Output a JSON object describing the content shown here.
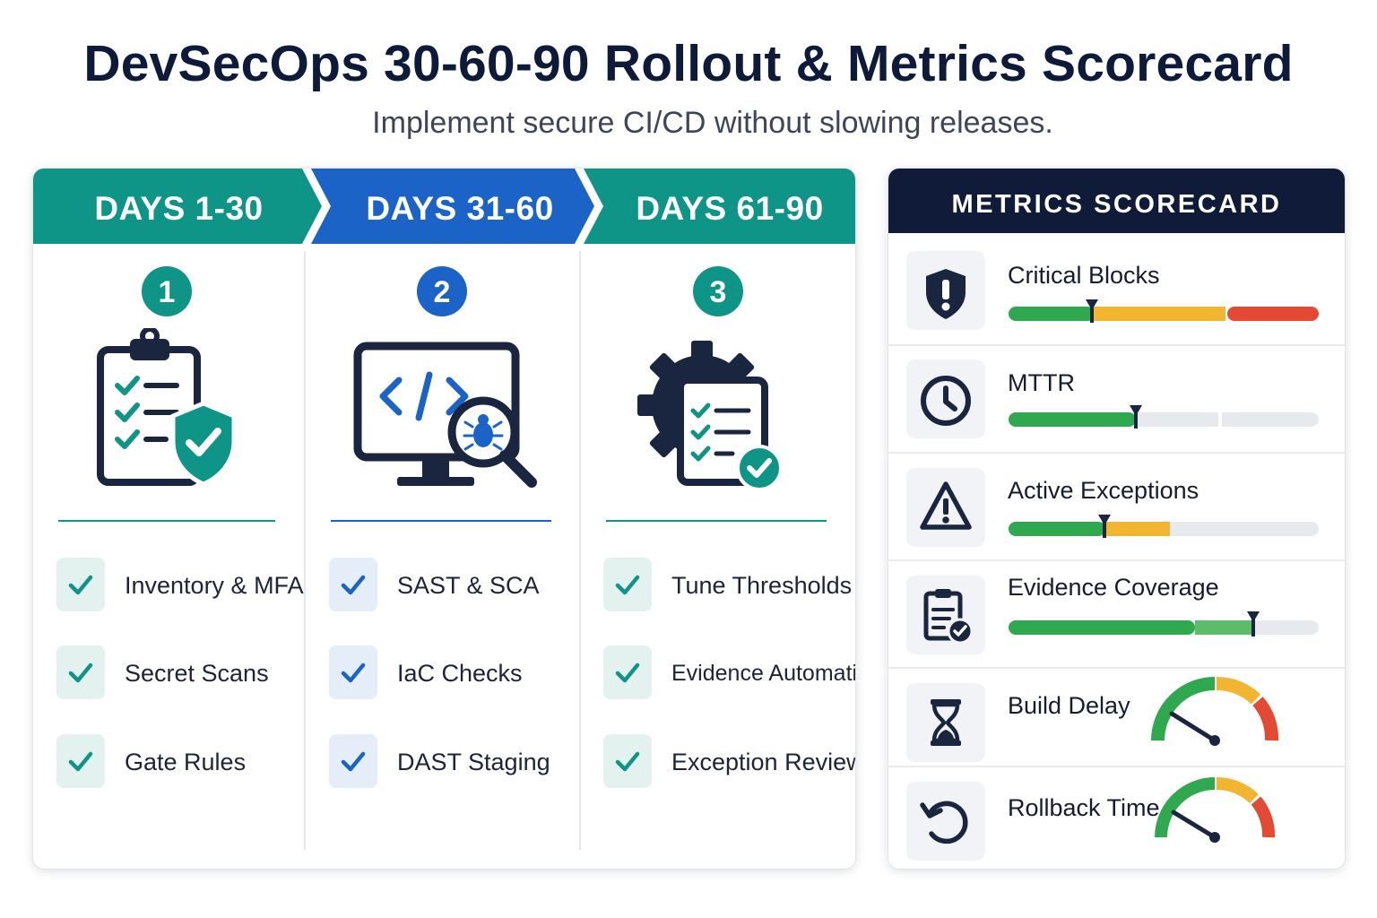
{
  "header": {
    "title": "DevSecOps 30-60-90 Rollout & Metrics Scorecard",
    "subtitle": "Implement secure CI/CD without slowing releases."
  },
  "colors": {
    "teal": "#0f9488",
    "blue": "#1b63c6",
    "navy": "#0f1b38",
    "green": "#2fa84f",
    "amber": "#f2b531",
    "red": "#e34a33",
    "track": "#e6e9ee"
  },
  "phases": [
    {
      "label": "DAYS 1-30",
      "number": "1",
      "color": "#0f9488",
      "icon": "clipboard-shield-icon",
      "items": [
        "Inventory & MFA",
        "Secret Scans",
        "Gate Rules"
      ]
    },
    {
      "label": "DAYS 31-60",
      "number": "2",
      "color": "#1b63c6",
      "icon": "monitor-code-bug-scan-icon",
      "items": [
        "SAST & SCA",
        "IaC Checks",
        "DAST Staging"
      ]
    },
    {
      "label": "DAYS 61-90",
      "number": "3",
      "color": "#0f9488",
      "icon": "gear-checklist-icon",
      "items": [
        "Tune Thresholds",
        "Evidence Automation",
        "Exception Review"
      ]
    }
  ],
  "scorecard": {
    "title": "METRICS SCORECARD",
    "metrics": [
      {
        "name": "Critical Blocks",
        "icon": "shield-alert-icon",
        "display": "bar",
        "level": 0.27
      },
      {
        "name": "MTTR",
        "icon": "clock-icon",
        "display": "bar",
        "level": 0.41
      },
      {
        "name": "Active Exceptions",
        "icon": "warning-triangle-icon",
        "display": "bar",
        "level": 0.31
      },
      {
        "name": "Evidence Coverage",
        "icon": "clipboard-check-icon",
        "display": "bar",
        "level": 0.79
      },
      {
        "name": "Build Delay",
        "icon": "hourglass-icon",
        "display": "gauge",
        "level": 0.33
      },
      {
        "name": "Rollback Time",
        "icon": "rollback-icon",
        "display": "gauge",
        "level": 0.3
      }
    ]
  }
}
